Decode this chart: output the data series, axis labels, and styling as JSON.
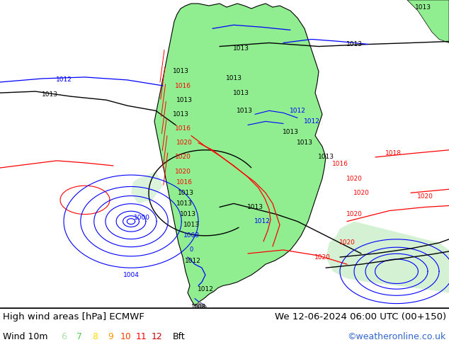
{
  "title_left": "High wind areas [hPa] ECMWF",
  "title_right": "We 12-06-2024 06:00 UTC (00+150)",
  "wind_label": "Wind 10m",
  "bft_values": [
    "6",
    "7",
    "8",
    "9",
    "10",
    "11",
    "12"
  ],
  "bft_colors": [
    "#aaddaa",
    "#55cc55",
    "#ffdd00",
    "#ff9900",
    "#ff4400",
    "#ff0000",
    "#cc0000"
  ],
  "bft_unit": "Bft",
  "copyright": "©weatheronline.co.uk",
  "copyright_color": "#3366cc",
  "bg_color": "#c8d4e0",
  "ocean_color": "#c8d4e0",
  "land_color": "#90ee90",
  "title_fontsize": 9.5,
  "label_fontsize": 9
}
